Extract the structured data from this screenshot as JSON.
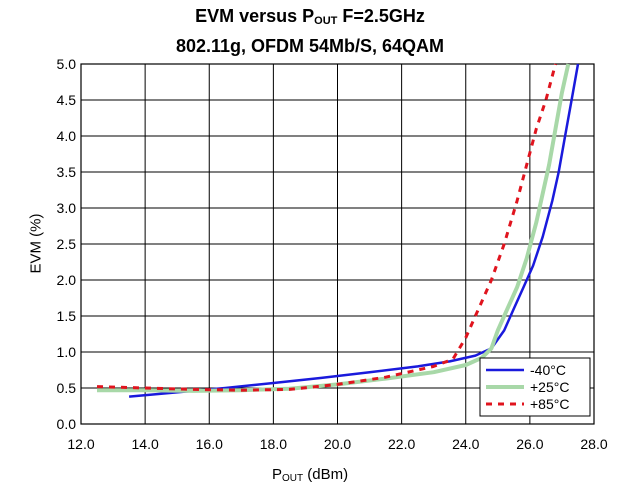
{
  "chart_data": {
    "type": "line",
    "title_main": "EVM versus P",
    "title_sub": "OUT",
    "title_tail": " F=2.5GHz",
    "subtitle": "802.11g, OFDM 54Mb/S, 64QAM",
    "xlabel_main": "P",
    "xlabel_sub": "OUT",
    "xlabel_tail": " (dBm)",
    "ylabel": "EVM (%)",
    "xlim": [
      12.0,
      28.0
    ],
    "ylim": [
      0.0,
      5.0
    ],
    "grid": true,
    "legend_position": "bottom-right",
    "x_tick_labels": [
      "12.0",
      "14.0",
      "16.0",
      "18.0",
      "20.0",
      "22.0",
      "24.0",
      "26.0",
      "28.0"
    ],
    "y_tick_labels": [
      "0.0",
      "0.5",
      "1.0",
      "1.5",
      "2.0",
      "2.5",
      "3.0",
      "3.5",
      "4.0",
      "4.5",
      "5.0"
    ],
    "series": [
      {
        "name": "-40°C",
        "color": "#1a1adc",
        "style": "solid",
        "points": [
          [
            13.5,
            0.38
          ],
          [
            14.5,
            0.42
          ],
          [
            15.5,
            0.46
          ],
          [
            16.5,
            0.5
          ],
          [
            18.0,
            0.57
          ],
          [
            19.5,
            0.64
          ],
          [
            21.0,
            0.72
          ],
          [
            22.5,
            0.8
          ],
          [
            23.5,
            0.87
          ],
          [
            24.3,
            0.95
          ],
          [
            24.8,
            1.05
          ],
          [
            25.2,
            1.3
          ],
          [
            25.5,
            1.6
          ],
          [
            25.8,
            1.9
          ],
          [
            26.1,
            2.2
          ],
          [
            26.4,
            2.6
          ],
          [
            26.7,
            3.1
          ],
          [
            26.9,
            3.5
          ],
          [
            27.1,
            4.0
          ],
          [
            27.3,
            4.5
          ],
          [
            27.5,
            5.0
          ]
        ]
      },
      {
        "name": "+25°C",
        "color": "#a8d8a8",
        "style": "solid",
        "points": [
          [
            12.5,
            0.47
          ],
          [
            14.0,
            0.47
          ],
          [
            15.5,
            0.46
          ],
          [
            17.0,
            0.47
          ],
          [
            18.5,
            0.49
          ],
          [
            20.0,
            0.55
          ],
          [
            21.5,
            0.63
          ],
          [
            23.0,
            0.72
          ],
          [
            24.0,
            0.82
          ],
          [
            24.5,
            0.92
          ],
          [
            24.8,
            1.05
          ],
          [
            25.0,
            1.3
          ],
          [
            25.3,
            1.6
          ],
          [
            25.6,
            1.9
          ],
          [
            25.9,
            2.3
          ],
          [
            26.2,
            2.8
          ],
          [
            26.4,
            3.2
          ],
          [
            26.6,
            3.6
          ],
          [
            26.8,
            4.1
          ],
          [
            27.0,
            4.6
          ],
          [
            27.2,
            5.0
          ]
        ]
      },
      {
        "name": "+85°C",
        "color": "#e0141e",
        "style": "dashed",
        "points": [
          [
            12.5,
            0.52
          ],
          [
            14.0,
            0.5
          ],
          [
            15.5,
            0.48
          ],
          [
            17.0,
            0.47
          ],
          [
            18.5,
            0.48
          ],
          [
            20.0,
            0.55
          ],
          [
            21.5,
            0.65
          ],
          [
            23.0,
            0.8
          ],
          [
            23.6,
            0.9
          ],
          [
            24.0,
            1.2
          ],
          [
            24.4,
            1.6
          ],
          [
            24.8,
            2.0
          ],
          [
            25.2,
            2.5
          ],
          [
            25.6,
            3.1
          ],
          [
            25.9,
            3.6
          ],
          [
            26.2,
            4.1
          ],
          [
            26.5,
            4.5
          ],
          [
            26.8,
            5.0
          ]
        ]
      }
    ]
  }
}
